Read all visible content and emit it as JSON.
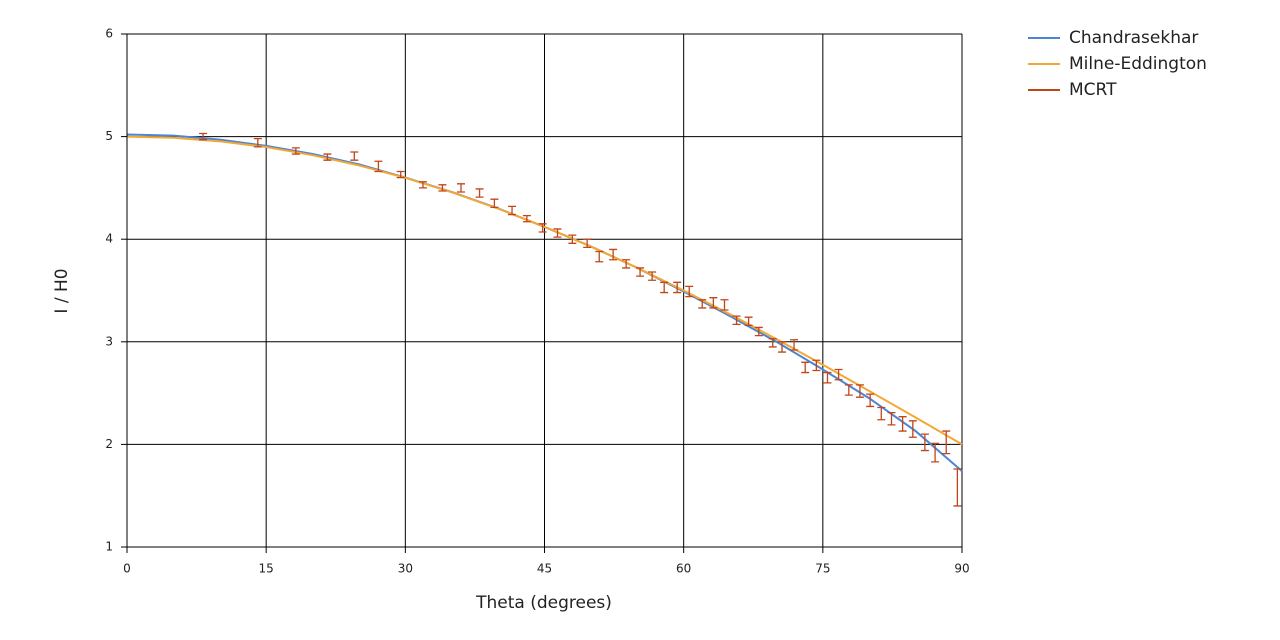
{
  "chart_data": {
    "type": "line",
    "xlabel": "Theta (degrees)",
    "ylabel": "I / H0",
    "xlim": [
      0,
      90
    ],
    "xticks": [
      0,
      15,
      30,
      45,
      60,
      75,
      90
    ],
    "ylim": [
      1,
      6
    ],
    "yticks": [
      1,
      2,
      3,
      4,
      5,
      6
    ],
    "grid": true,
    "legend": "outside-right",
    "series": [
      {
        "name": "Chandrasekhar",
        "color": "#4a86d8",
        "x": [
          0,
          5,
          10,
          15,
          20,
          25,
          30,
          35,
          40,
          45,
          50,
          55,
          60,
          65,
          70,
          75,
          80,
          85,
          90
        ],
        "values": [
          5.02,
          5.01,
          4.97,
          4.91,
          4.83,
          4.73,
          4.6,
          4.46,
          4.3,
          4.12,
          3.93,
          3.72,
          3.49,
          3.25,
          3.0,
          2.73,
          2.45,
          2.13,
          1.74
        ]
      },
      {
        "name": "Milne-Eddington",
        "color": "#f5a733",
        "x": [
          0,
          5,
          10,
          15,
          20,
          25,
          30,
          35,
          40,
          45,
          50,
          55,
          60,
          65,
          70,
          75,
          80,
          85,
          90
        ],
        "values": [
          5.0,
          4.989,
          4.954,
          4.898,
          4.819,
          4.719,
          4.598,
          4.458,
          4.298,
          4.121,
          3.928,
          3.721,
          3.5,
          3.268,
          3.026,
          2.776,
          2.521,
          2.262,
          2.0
        ]
      },
      {
        "name": "MCRT",
        "color": "#c0461a",
        "style": "errorbar",
        "x": [
          8.2,
          14.1,
          18.2,
          21.6,
          24.5,
          27.1,
          29.5,
          31.9,
          34,
          36,
          38,
          39.6,
          41.5,
          43.1,
          44.8,
          46.4,
          48,
          49.6,
          50.9,
          52.4,
          53.8,
          55.3,
          56.6,
          57.9,
          59.3,
          60.6,
          62,
          63.2,
          64.4,
          65.7,
          67,
          68.1,
          69.6,
          70.6,
          71.9,
          73.1,
          74.3,
          75.5,
          76.7,
          77.8,
          79,
          80.1,
          81.3,
          82.4,
          83.6,
          84.7,
          86,
          87.1,
          88.3,
          89.5
        ],
        "values": [
          5.0,
          4.94,
          4.86,
          4.8,
          4.81,
          4.71,
          4.63,
          4.53,
          4.5,
          4.5,
          4.45,
          4.35,
          4.28,
          4.2,
          4.11,
          4.06,
          4.0,
          3.96,
          3.83,
          3.85,
          3.76,
          3.68,
          3.64,
          3.53,
          3.53,
          3.49,
          3.37,
          3.38,
          3.36,
          3.21,
          3.2,
          3.1,
          2.99,
          2.95,
          2.97,
          2.75,
          2.77,
          2.65,
          2.68,
          2.53,
          2.52,
          2.43,
          2.3,
          2.25,
          2.2,
          2.15,
          2.02,
          1.92,
          2.02,
          1.58
        ],
        "errors": [
          0.03,
          0.04,
          0.03,
          0.03,
          0.04,
          0.05,
          0.03,
          0.03,
          0.03,
          0.04,
          0.04,
          0.04,
          0.04,
          0.03,
          0.04,
          0.04,
          0.04,
          0.04,
          0.05,
          0.05,
          0.04,
          0.04,
          0.04,
          0.05,
          0.05,
          0.05,
          0.04,
          0.05,
          0.05,
          0.04,
          0.04,
          0.04,
          0.04,
          0.05,
          0.05,
          0.05,
          0.05,
          0.05,
          0.05,
          0.05,
          0.06,
          0.06,
          0.06,
          0.06,
          0.07,
          0.08,
          0.08,
          0.09,
          0.11,
          0.18
        ]
      }
    ]
  }
}
